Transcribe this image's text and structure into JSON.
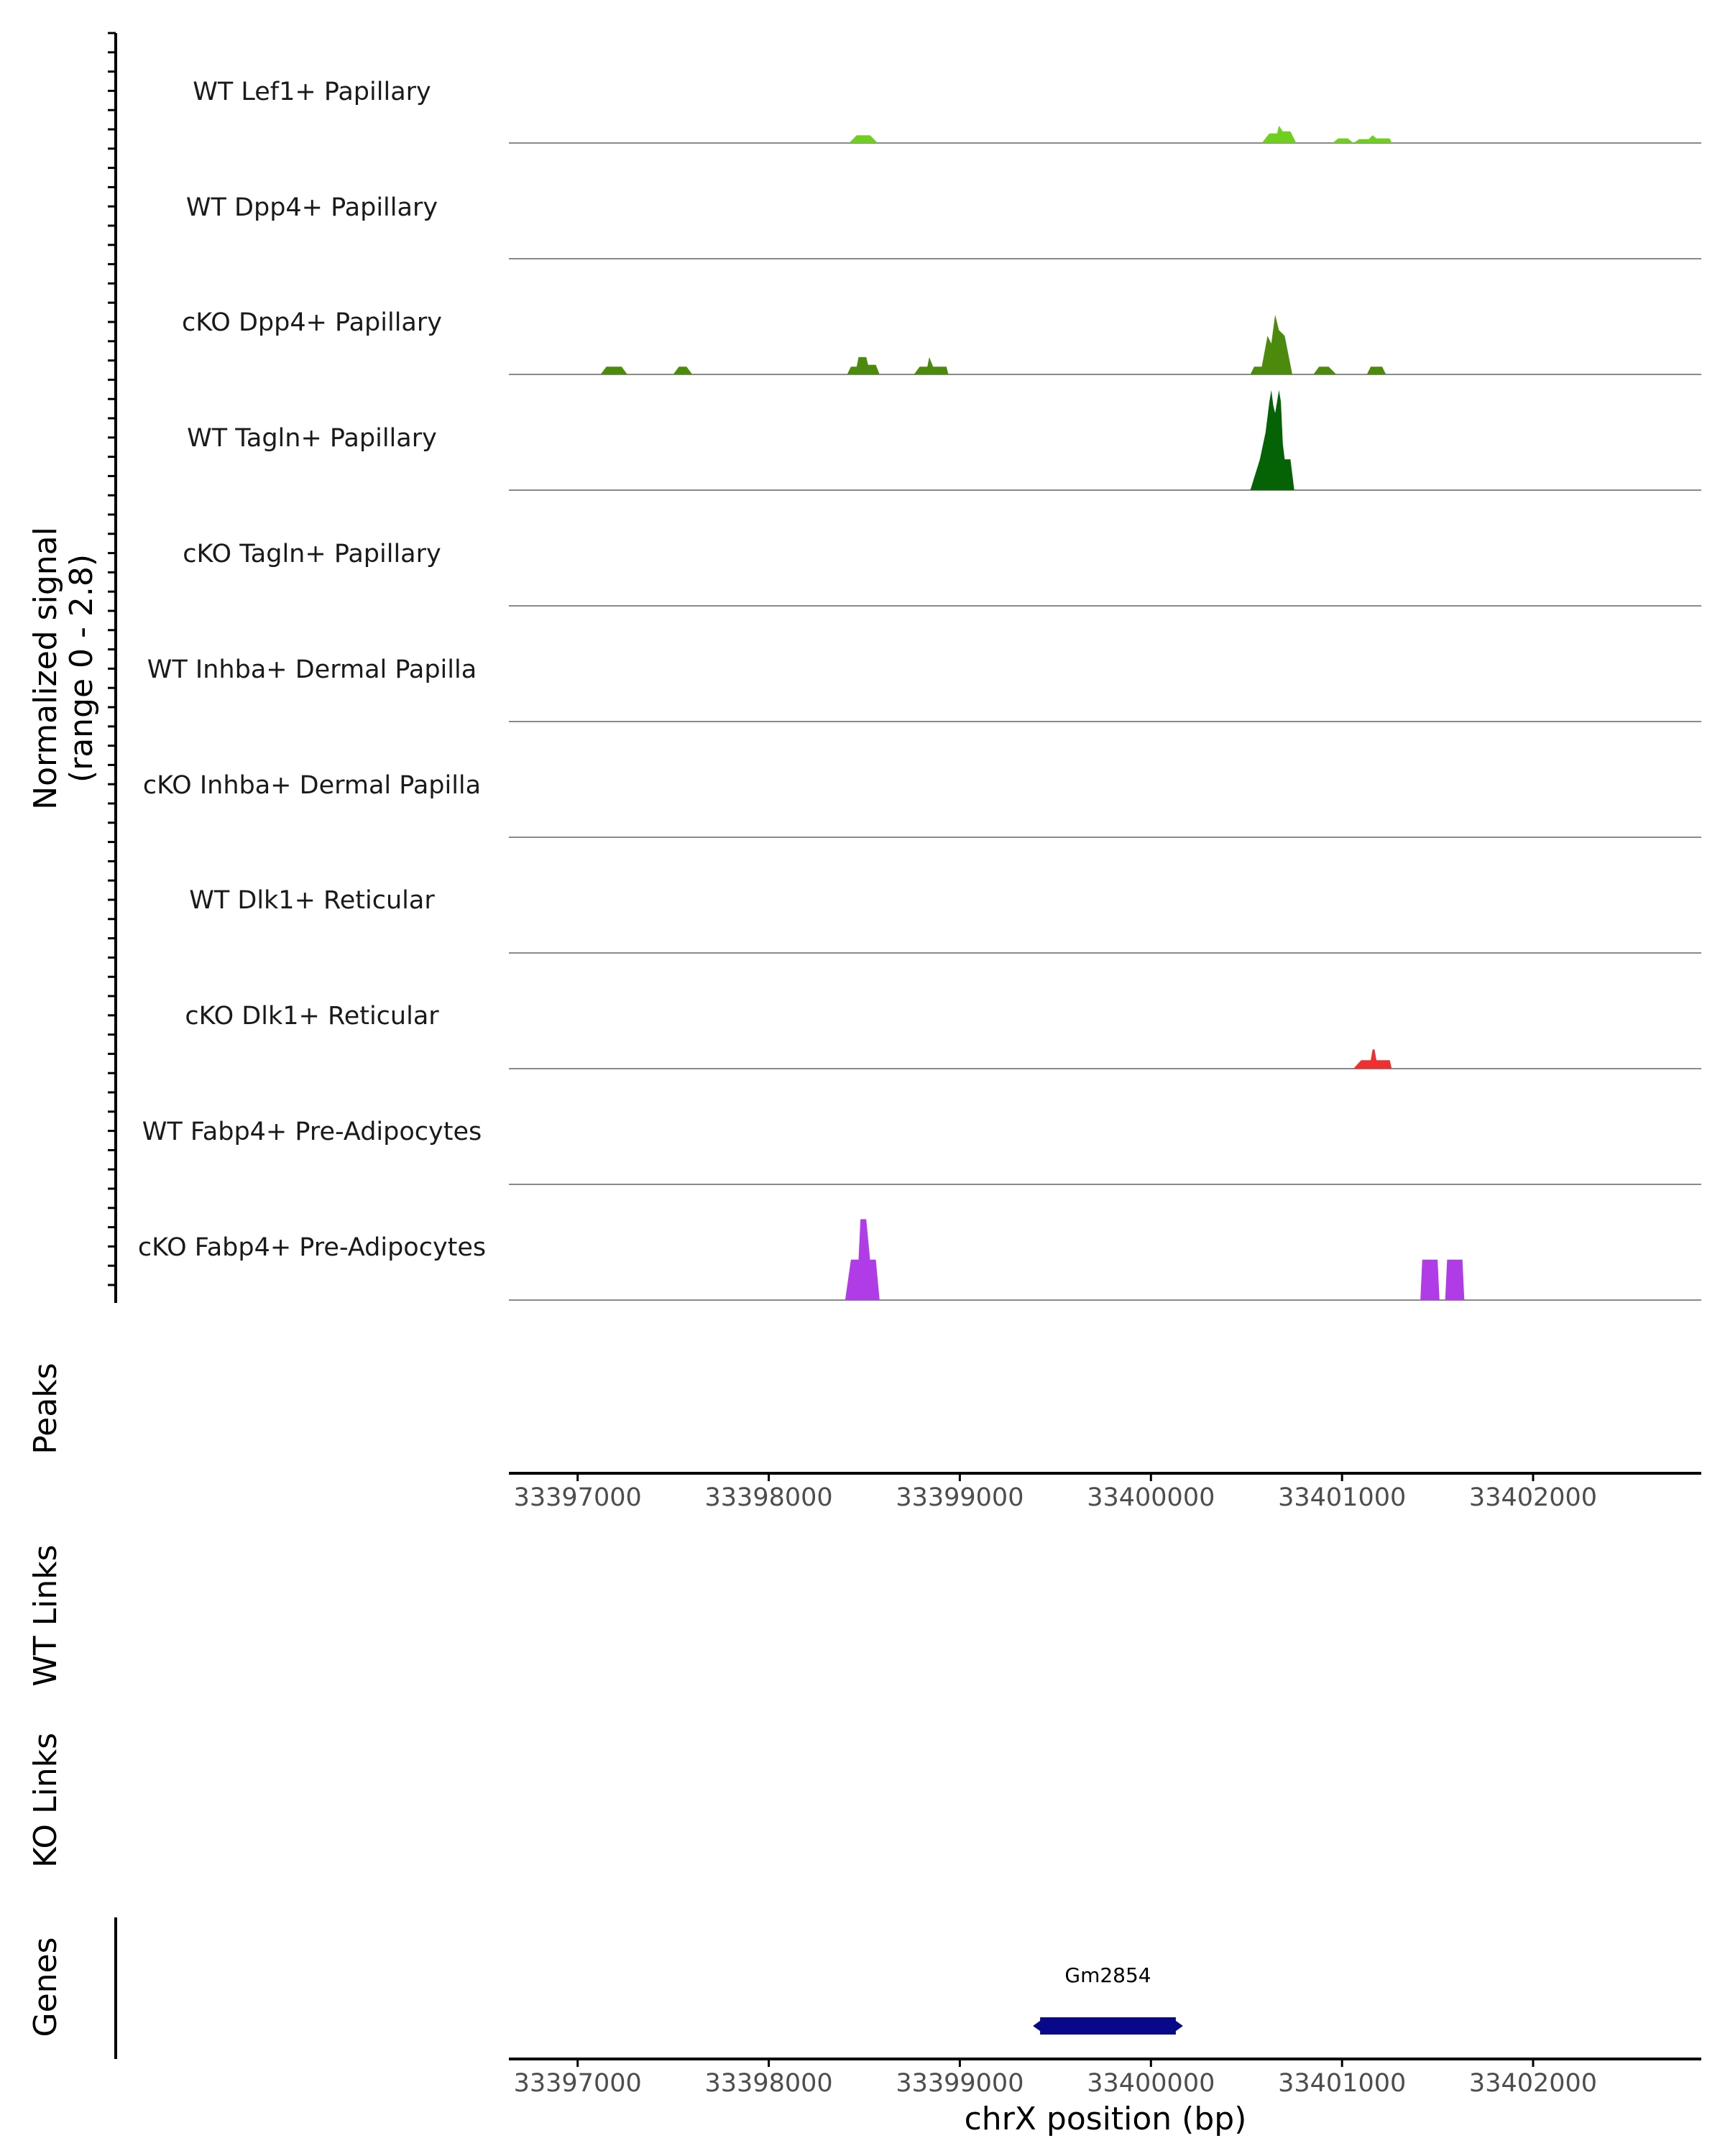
{
  "chart_data": {
    "type": "area",
    "subtype": "genome-coverage-track",
    "chromosome": "chrX",
    "x_range": [
      33396640,
      33402880
    ],
    "y_range": [
      0,
      2.8
    ],
    "signal_ylabel_line1": "Normalized signal",
    "signal_ylabel_line2": "(range 0 - 2.8)",
    "xlabel": "chrX position (bp)",
    "x_ticks": [
      33397000,
      33398000,
      33399000,
      33400000,
      33401000,
      33402000
    ],
    "x_tick_labels": [
      "33397000",
      "33398000",
      "33399000",
      "33400000",
      "33401000",
      "33402000"
    ],
    "tracks": [
      {
        "name": "WT Lef1+ Papillary",
        "color": "#6fcf1e",
        "points": [
          [
            33398420,
            0
          ],
          [
            33398460,
            0.2
          ],
          [
            33398530,
            0.2
          ],
          [
            33398570,
            0
          ],
          [
            33400580,
            0
          ],
          [
            33400620,
            0.25
          ],
          [
            33400660,
            0.25
          ],
          [
            33400670,
            0.45
          ],
          [
            33400690,
            0.3
          ],
          [
            33400730,
            0.3
          ],
          [
            33400760,
            0
          ],
          [
            33400950,
            0
          ],
          [
            33400980,
            0.12
          ],
          [
            33401030,
            0.12
          ],
          [
            33401060,
            0
          ],
          [
            33401090,
            0.1
          ],
          [
            33401140,
            0.1
          ],
          [
            33401160,
            0.2
          ],
          [
            33401180,
            0.12
          ],
          [
            33401250,
            0.12
          ],
          [
            33401260,
            0
          ]
        ]
      },
      {
        "name": "WT Dpp4+ Papillary",
        "color": "#4c8a0e",
        "points": []
      },
      {
        "name": "cKO Dpp4+ Papillary",
        "color": "#4c8a0e",
        "points": [
          [
            33397120,
            0
          ],
          [
            33397150,
            0.2
          ],
          [
            33397230,
            0.2
          ],
          [
            33397260,
            0
          ],
          [
            33397500,
            0
          ],
          [
            33397530,
            0.2
          ],
          [
            33397570,
            0.2
          ],
          [
            33397600,
            0
          ],
          [
            33398410,
            0
          ],
          [
            33398430,
            0.2
          ],
          [
            33398460,
            0.2
          ],
          [
            33398470,
            0.45
          ],
          [
            33398510,
            0.45
          ],
          [
            33398520,
            0.25
          ],
          [
            33398560,
            0.25
          ],
          [
            33398580,
            0
          ],
          [
            33398760,
            0
          ],
          [
            33398790,
            0.2
          ],
          [
            33398830,
            0.2
          ],
          [
            33398840,
            0.45
          ],
          [
            33398860,
            0.2
          ],
          [
            33398930,
            0.2
          ],
          [
            33398940,
            0
          ],
          [
            33400520,
            0
          ],
          [
            33400540,
            0.2
          ],
          [
            33400580,
            0.2
          ],
          [
            33400610,
            1.0
          ],
          [
            33400630,
            0.8
          ],
          [
            33400650,
            1.55
          ],
          [
            33400670,
            1.15
          ],
          [
            33400700,
            1.0
          ],
          [
            33400740,
            0
          ],
          [
            33400850,
            0
          ],
          [
            33400880,
            0.2
          ],
          [
            33400930,
            0.2
          ],
          [
            33400970,
            0
          ],
          [
            33401130,
            0
          ],
          [
            33401150,
            0.2
          ],
          [
            33401210,
            0.2
          ],
          [
            33401230,
            0
          ]
        ]
      },
      {
        "name": "WT Tagln+ Papillary",
        "color": "#056305",
        "points": [
          [
            33400520,
            0
          ],
          [
            33400570,
            0.8
          ],
          [
            33400600,
            1.5
          ],
          [
            33400620,
            2.3
          ],
          [
            33400630,
            2.6
          ],
          [
            33400640,
            2.2
          ],
          [
            33400650,
            2.0
          ],
          [
            33400660,
            2.3
          ],
          [
            33400670,
            2.6
          ],
          [
            33400680,
            2.3
          ],
          [
            33400690,
            1.2
          ],
          [
            33400700,
            0.8
          ],
          [
            33400730,
            0.8
          ],
          [
            33400750,
            0
          ]
        ]
      },
      {
        "name": "cKO Tagln+ Papillary",
        "color": "#056305",
        "points": []
      },
      {
        "name": "WT Inhba+ Dermal Papilla",
        "color": "#2f9d2f",
        "points": []
      },
      {
        "name": "cKO Inhba+ Dermal Papilla",
        "color": "#2f9d2f",
        "points": []
      },
      {
        "name": "WT Dlk1+ Reticular",
        "color": "#ee3030",
        "points": []
      },
      {
        "name": "cKO Dlk1+ Reticular",
        "color": "#ee3030",
        "points": [
          [
            33401060,
            0
          ],
          [
            33401100,
            0.22
          ],
          [
            33401150,
            0.22
          ],
          [
            33401160,
            0.5
          ],
          [
            33401170,
            0.5
          ],
          [
            33401180,
            0.22
          ],
          [
            33401250,
            0.22
          ],
          [
            33401260,
            0
          ]
        ]
      },
      {
        "name": "WT Fabp4+ Pre-Adipocytes",
        "color": "#b03ce8",
        "points": []
      },
      {
        "name": "cKO Fabp4+ Pre-Adipocytes",
        "color": "#b03ce8",
        "points": [
          [
            33398400,
            0
          ],
          [
            33398430,
            1.05
          ],
          [
            33398470,
            1.05
          ],
          [
            33398480,
            2.1
          ],
          [
            33398510,
            2.1
          ],
          [
            33398530,
            1.05
          ],
          [
            33398560,
            1.05
          ],
          [
            33398580,
            0
          ],
          [
            33401410,
            0
          ],
          [
            33401420,
            1.05
          ],
          [
            33401500,
            1.05
          ],
          [
            33401510,
            0
          ],
          [
            33401540,
            0
          ],
          [
            33401550,
            1.05
          ],
          [
            33401630,
            1.05
          ],
          [
            33401640,
            0
          ]
        ]
      }
    ],
    "panels": {
      "peaks_label": "Peaks",
      "wt_links_label": "WT Links",
      "ko_links_label": "KO Links",
      "genes_label": "Genes"
    },
    "genes": [
      {
        "name": "Gm2854",
        "start": 33399420,
        "end": 33400130,
        "color": "#08088a"
      }
    ]
  }
}
